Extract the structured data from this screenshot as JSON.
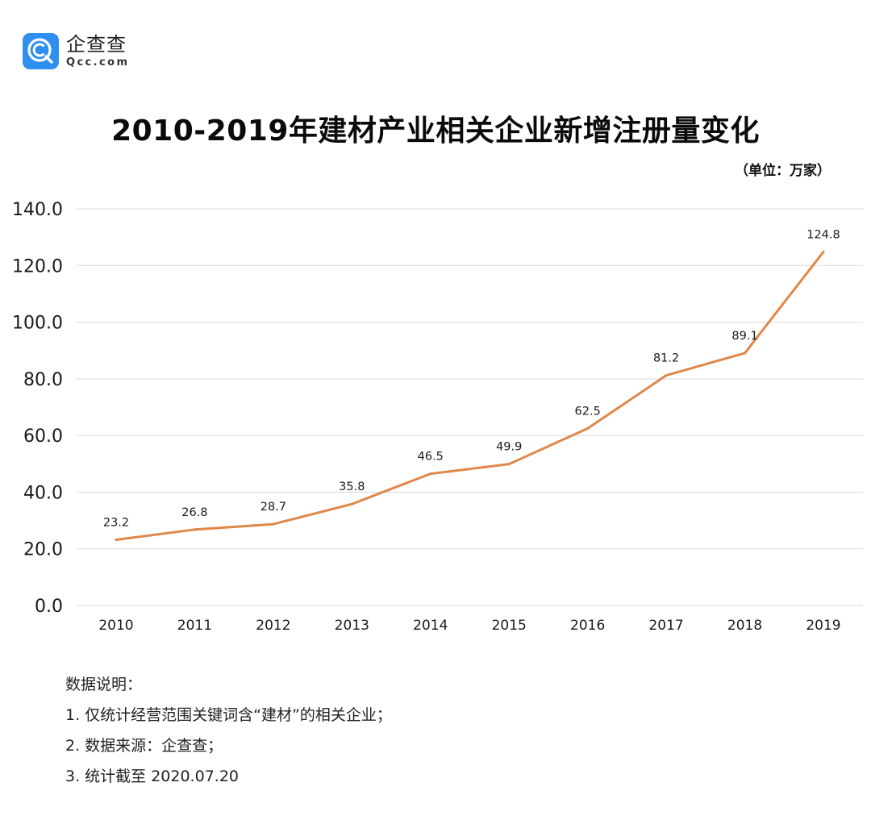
{
  "logo": {
    "icon": "qcc-logo-icon",
    "name_cn": "企查查",
    "name_en": "Qcc.com"
  },
  "unit_label": "（单位：万家）",
  "notes": {
    "heading": "数据说明：",
    "items": [
      "1. 仅统计经营范围关键词含“建材”的相关企业；",
      "2. 数据来源：企查查；",
      "3. 统计截至 2020.07.20"
    ]
  },
  "colors": {
    "line": "#e0874a",
    "grid": "#d9d9d9",
    "text": "#111111"
  },
  "chart_data": {
    "type": "line",
    "title": "2010-2019年建材产业相关企业新增注册量变化",
    "xlabel": "",
    "ylabel": "万家",
    "categories": [
      "2010",
      "2011",
      "2012",
      "2013",
      "2014",
      "2015",
      "2016",
      "2017",
      "2018",
      "2019"
    ],
    "series": [
      {
        "name": "新增注册量",
        "values": [
          23.2,
          26.8,
          28.7,
          35.8,
          46.5,
          49.9,
          62.5,
          81.2,
          89.1,
          124.8
        ],
        "data_labels": [
          "23.2",
          "26.8",
          "28.7",
          "35.8",
          "46.5",
          "49.9",
          "62.5",
          "81.2",
          "89.1",
          "124.8"
        ]
      }
    ],
    "ylim": [
      0,
      140
    ],
    "yticks": [
      0,
      20,
      40,
      60,
      80,
      100,
      120,
      140
    ],
    "ytick_labels": [
      "0.0",
      "20.0",
      "40.0",
      "60.0",
      "80.0",
      "100.0",
      "120.0",
      "140.0"
    ],
    "grid": true,
    "legend": "none"
  }
}
